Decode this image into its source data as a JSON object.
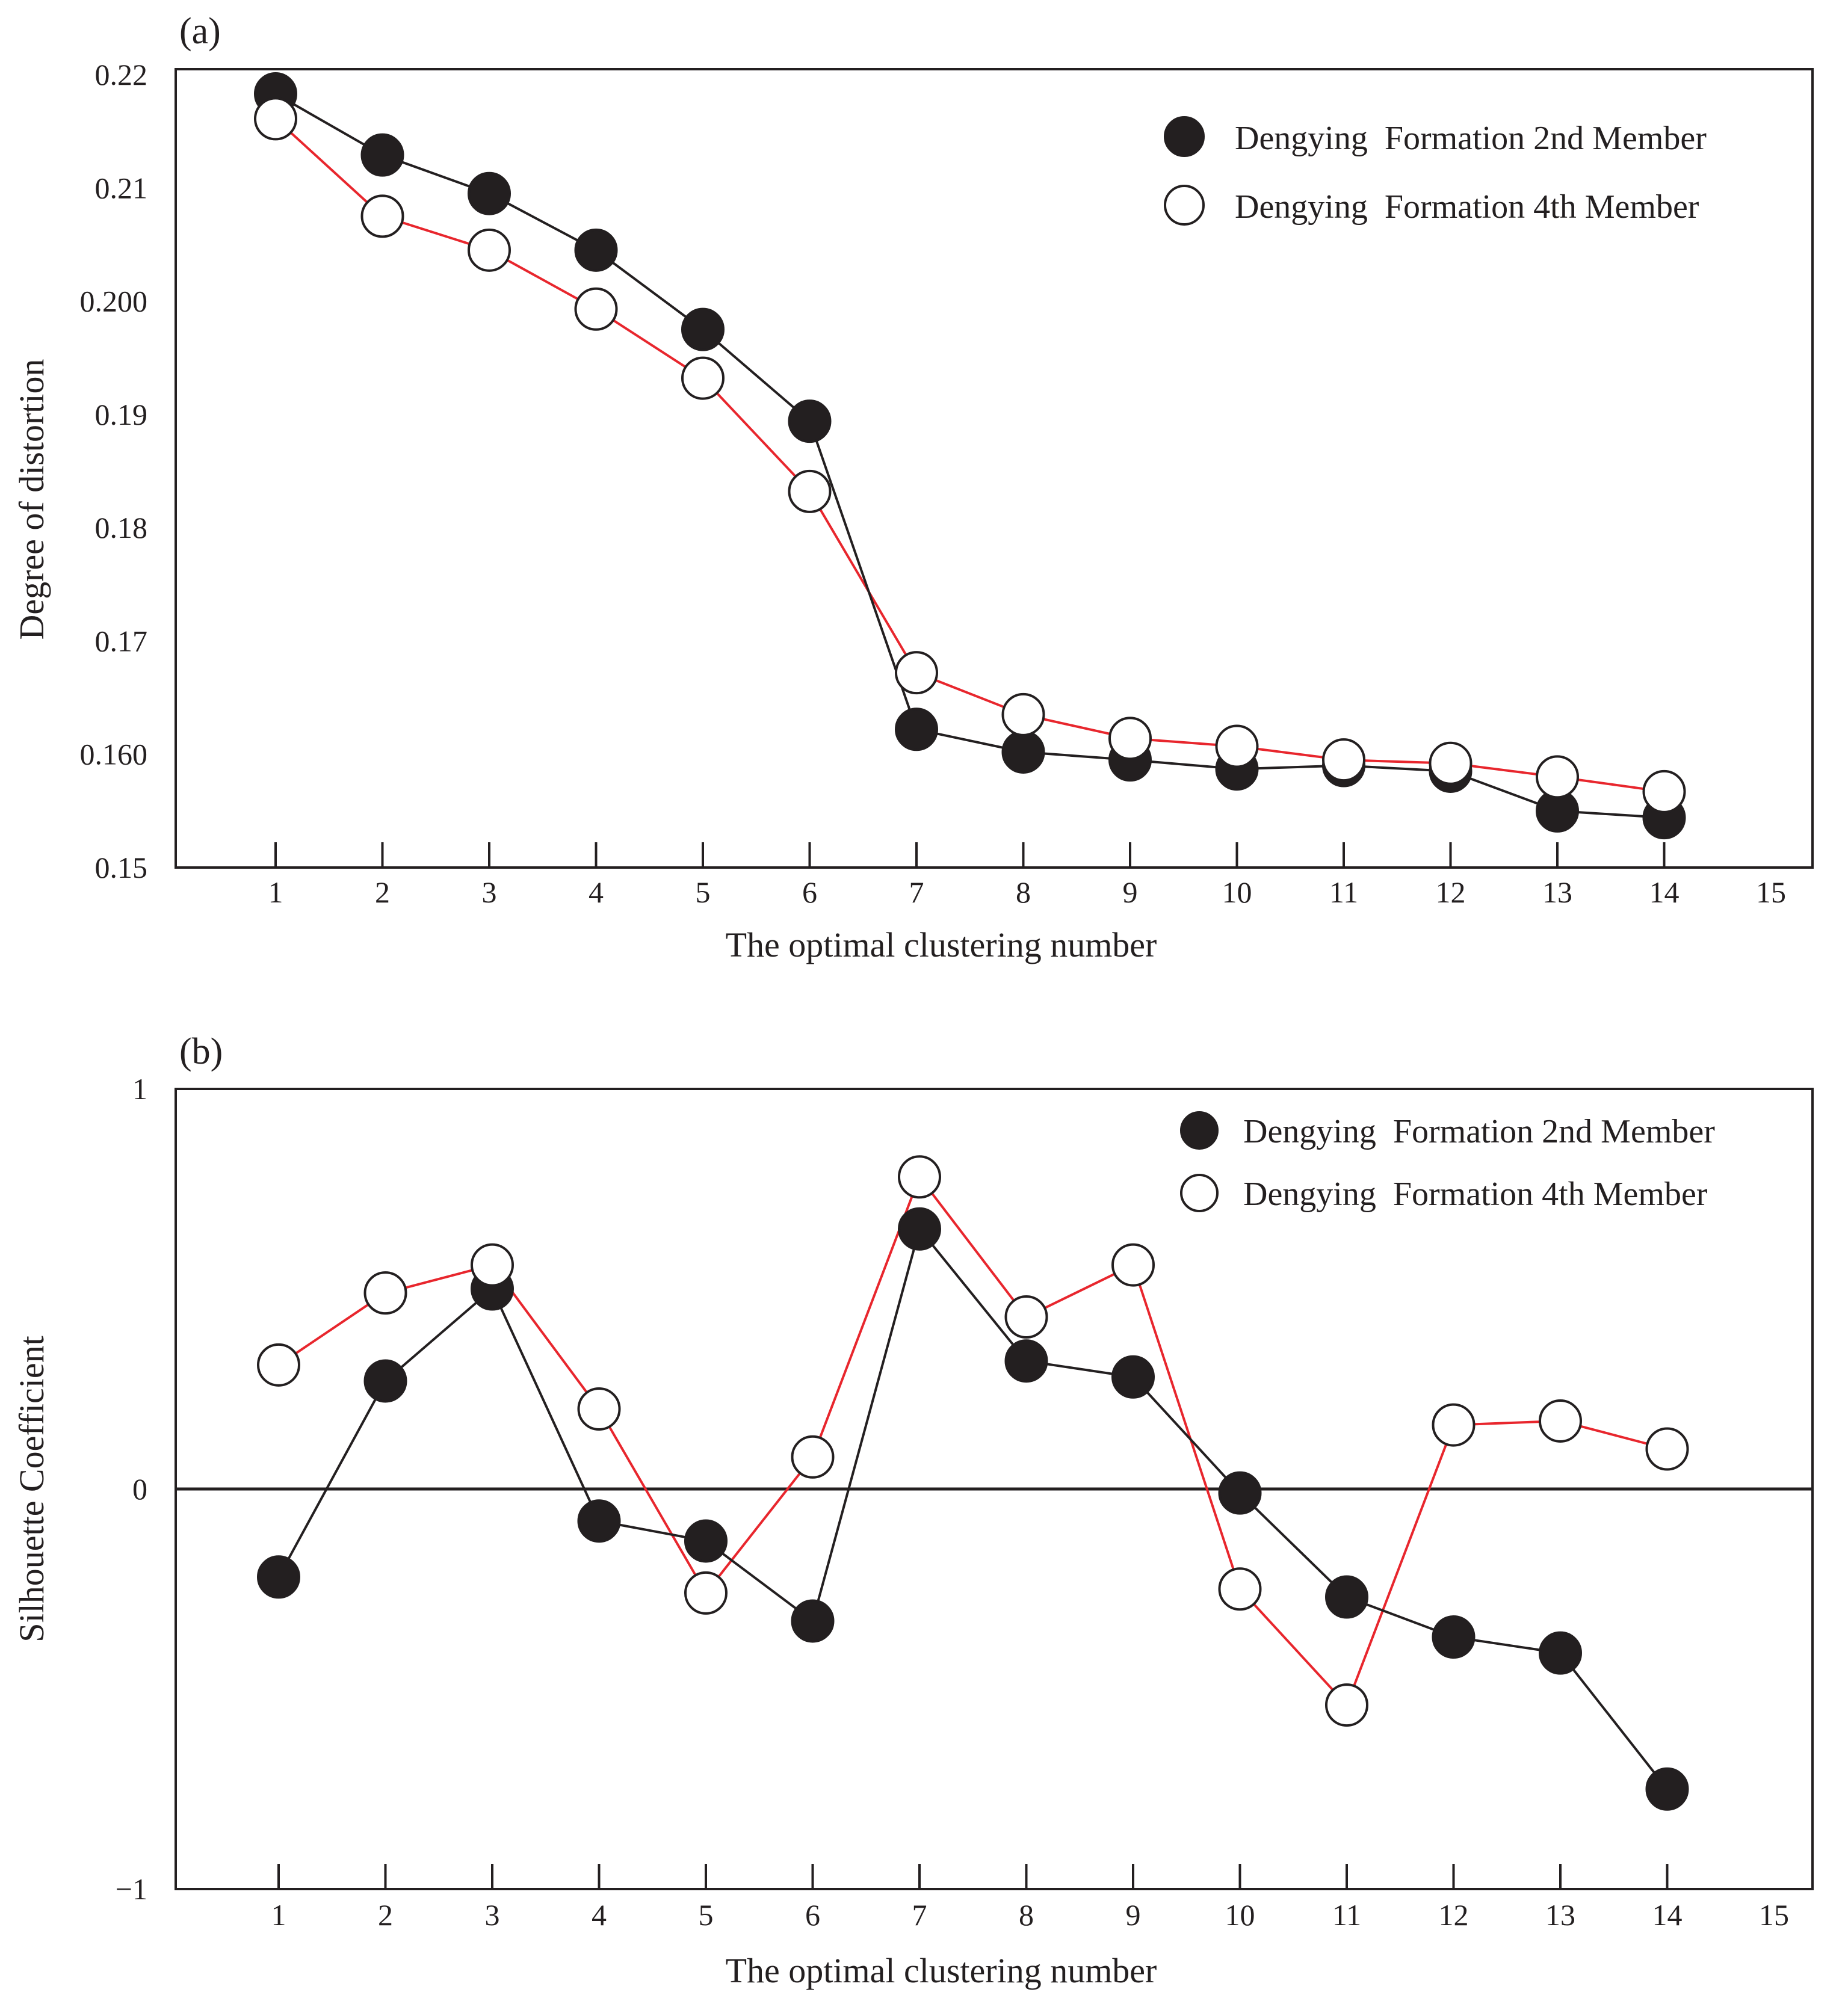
{
  "chart_data": [
    {
      "type": "line",
      "panel_label": "(a)",
      "title": "",
      "xlabel": "The optimal clustering number",
      "ylabel": "Degree of distortion",
      "xlim": [
        0,
        15
      ],
      "ylim": [
        0.15,
        0.22
      ],
      "x_ticks": [
        1,
        2,
        3,
        4,
        5,
        6,
        7,
        8,
        9,
        10,
        11,
        12,
        13,
        14,
        15
      ],
      "x_tick_labels": [
        "1",
        "2",
        "3",
        "4",
        "5",
        "6",
        "7",
        "8",
        "9",
        "10",
        "11",
        "12",
        "13",
        "14",
        "15"
      ],
      "y_ticks": [
        0.15,
        0.16,
        0.17,
        0.18,
        0.19,
        0.2,
        0.21,
        0.22
      ],
      "y_tick_labels": [
        "0.15",
        "0.160",
        "0.17",
        "0.18",
        "0.19",
        "0.200",
        "0.21",
        "0.22"
      ],
      "x": [
        1,
        2,
        3,
        4,
        5,
        6,
        7,
        8,
        9,
        10,
        11,
        12,
        13,
        14
      ],
      "legend_position": "top-right",
      "series": [
        {
          "name": "Dengying  Formation 2nd Member",
          "marker": "filled",
          "line_color": "#231f20",
          "values": [
            0.2183,
            0.2129,
            0.2095,
            0.2045,
            0.1975,
            0.1894,
            0.1622,
            0.1602,
            0.1595,
            0.1587,
            0.159,
            0.1585,
            0.155,
            0.1544
          ]
        },
        {
          "name": "Dengying  Formation 4th Member",
          "marker": "open",
          "line_color": "#e8262d",
          "values": [
            0.2161,
            0.2075,
            0.2045,
            0.1993,
            0.1932,
            0.1832,
            0.1672,
            0.1635,
            0.1614,
            0.1607,
            0.1595,
            0.1592,
            0.158,
            0.1567
          ]
        }
      ]
    },
    {
      "type": "line",
      "panel_label": "(b)",
      "title": "",
      "xlabel": "The optimal clustering number",
      "ylabel": "Silhouette Coefficient",
      "xlim": [
        0,
        15
      ],
      "ylim": [
        -1,
        1
      ],
      "x_ticks": [
        1,
        2,
        3,
        4,
        5,
        6,
        7,
        8,
        9,
        10,
        11,
        12,
        13,
        14,
        15
      ],
      "x_tick_labels": [
        "1",
        "2",
        "3",
        "4",
        "5",
        "6",
        "7",
        "8",
        "9",
        "10",
        "11",
        "12",
        "13",
        "14",
        "15"
      ],
      "y_ticks": [
        -1,
        0,
        1
      ],
      "y_tick_labels": [
        "−1",
        "0",
        "1"
      ],
      "zero_line": true,
      "x": [
        1,
        2,
        3,
        4,
        5,
        6,
        7,
        8,
        9,
        10,
        11,
        12,
        13,
        14
      ],
      "legend_position": "top-right",
      "series": [
        {
          "name": "Dengying  Formation 2nd Member",
          "marker": "filled",
          "line_color": "#231f20",
          "values": [
            -0.22,
            0.27,
            0.5,
            -0.08,
            -0.13,
            -0.33,
            0.65,
            0.32,
            0.28,
            -0.01,
            -0.27,
            -0.37,
            -0.41,
            -0.75
          ]
        },
        {
          "name": "Dengying  Formation 4th Member",
          "marker": "open",
          "line_color": "#e8262d",
          "values": [
            0.31,
            0.49,
            0.56,
            0.2,
            -0.26,
            0.08,
            0.78,
            0.43,
            0.56,
            -0.25,
            -0.54,
            0.16,
            0.17,
            0.1
          ]
        }
      ]
    }
  ]
}
